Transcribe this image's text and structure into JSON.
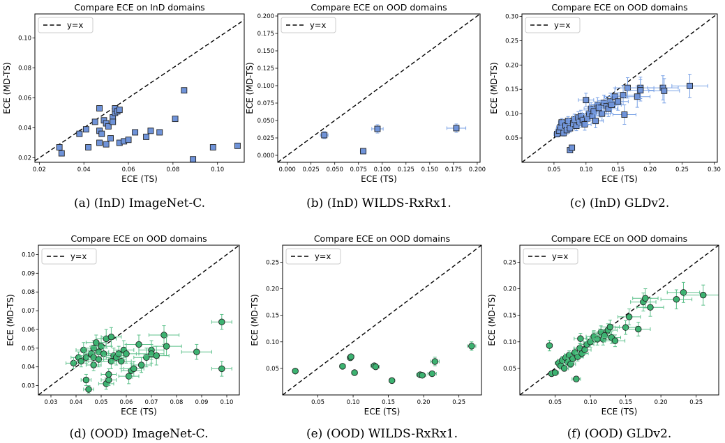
{
  "colors": {
    "blue_face": "#6f93d9",
    "blue_err": "#7aa2e6",
    "green_face": "#3cb371",
    "green_err": "#5cc08a",
    "edge": "#222222"
  },
  "chart_data": [
    {
      "type": "scatter",
      "title": "Compare ECE on InD domains",
      "xlabel": "ECE (TS)",
      "ylabel": "ECE (MD-TS)",
      "xlim": [
        0.018,
        0.112
      ],
      "ylim": [
        0.017,
        0.116
      ],
      "xticks": [
        "0.02",
        "0.04",
        "0.06",
        "0.08",
        "0.10"
      ],
      "yticks": [
        "0.02",
        "0.04",
        "0.06",
        "0.08",
        "0.10"
      ],
      "marker": "square",
      "color": "blue",
      "legend": "y=x",
      "legend_position": "top-left",
      "caption": "(a) (InD) ImageNet-C.",
      "points": [
        [
          0.029,
          0.027,
          0,
          0
        ],
        [
          0.03,
          0.023,
          0,
          0
        ],
        [
          0.038,
          0.036,
          0,
          0
        ],
        [
          0.041,
          0.039,
          0,
          0
        ],
        [
          0.042,
          0.027,
          0,
          0
        ],
        [
          0.045,
          0.044,
          0,
          0
        ],
        [
          0.047,
          0.053,
          0,
          0
        ],
        [
          0.047,
          0.038,
          0,
          0
        ],
        [
          0.047,
          0.03,
          0,
          0
        ],
        [
          0.048,
          0.036,
          0,
          0
        ],
        [
          0.049,
          0.045,
          0,
          0
        ],
        [
          0.05,
          0.043,
          0,
          0
        ],
        [
          0.05,
          0.029,
          0,
          0
        ],
        [
          0.051,
          0.041,
          0,
          0
        ],
        [
          0.052,
          0.033,
          0,
          0
        ],
        [
          0.053,
          0.047,
          0,
          0
        ],
        [
          0.053,
          0.044,
          0,
          0
        ],
        [
          0.054,
          0.05,
          0,
          0
        ],
        [
          0.054,
          0.053,
          0,
          0
        ],
        [
          0.055,
          0.051,
          0,
          0
        ],
        [
          0.056,
          0.052,
          0,
          0
        ],
        [
          0.056,
          0.03,
          0,
          0
        ],
        [
          0.058,
          0.031,
          0,
          0
        ],
        [
          0.06,
          0.032,
          0,
          0
        ],
        [
          0.063,
          0.037,
          0,
          0
        ],
        [
          0.068,
          0.034,
          0,
          0
        ],
        [
          0.07,
          0.038,
          0,
          0
        ],
        [
          0.074,
          0.037,
          0,
          0
        ],
        [
          0.081,
          0.046,
          0,
          0
        ],
        [
          0.085,
          0.065,
          0,
          0
        ],
        [
          0.089,
          0.019,
          0,
          0
        ],
        [
          0.098,
          0.027,
          0,
          0
        ],
        [
          0.109,
          0.028,
          0,
          0
        ]
      ]
    },
    {
      "type": "scatter",
      "title": "Compare ECE on OOD domains",
      "xlabel": "ECE (TS)",
      "ylabel": "ECE (MD-TS)",
      "xlim": [
        -0.01,
        0.203
      ],
      "ylim": [
        -0.01,
        0.203
      ],
      "xticks": [
        "0.000",
        "0.025",
        "0.050",
        "0.075",
        "0.100",
        "0.125",
        "0.150",
        "0.175",
        "0.200"
      ],
      "yticks": [
        "0.000",
        "0.025",
        "0.050",
        "0.075",
        "0.100",
        "0.125",
        "0.150",
        "0.175",
        "0.200"
      ],
      "marker": "square",
      "color": "blue",
      "legend": "y=x",
      "legend_position": "top-left",
      "caption": "(b) (InD) WILDS-RxRx1.",
      "points": [
        [
          0.039,
          0.029,
          0.004,
          0.005
        ],
        [
          0.08,
          0.006,
          0.003,
          0.002
        ],
        [
          0.095,
          0.038,
          0.006,
          0.006
        ],
        [
          0.178,
          0.039,
          0.01,
          0.006
        ]
      ]
    },
    {
      "type": "scatter",
      "title": "Compare ECE on OOD domains",
      "xlabel": "ECE (TS)",
      "ylabel": "ECE (MD-TS)",
      "xlim": [
        0.0,
        0.305
      ],
      "ylim": [
        0.0,
        0.305
      ],
      "xticks": [
        "0.05",
        "0.10",
        "0.15",
        "0.20",
        "0.25",
        "0.30"
      ],
      "yticks": [
        "0.05",
        "0.10",
        "0.15",
        "0.20",
        "0.25",
        "0.30"
      ],
      "marker": "square",
      "color": "blue",
      "legend": "y=x",
      "legend_position": "top-left",
      "caption": "(c) (InD) GLDv2.",
      "points": [
        [
          0.055,
          0.058,
          0.005,
          0.006
        ],
        [
          0.058,
          0.065,
          0.006,
          0.007
        ],
        [
          0.06,
          0.072,
          0.006,
          0.008
        ],
        [
          0.062,
          0.082,
          0.005,
          0.008
        ],
        [
          0.065,
          0.06,
          0.005,
          0.006
        ],
        [
          0.068,
          0.075,
          0.007,
          0.009
        ],
        [
          0.07,
          0.066,
          0.006,
          0.008
        ],
        [
          0.072,
          0.085,
          0.008,
          0.009
        ],
        [
          0.075,
          0.025,
          0.004,
          0.004
        ],
        [
          0.078,
          0.03,
          0.004,
          0.004
        ],
        [
          0.075,
          0.07,
          0.007,
          0.008
        ],
        [
          0.08,
          0.08,
          0.008,
          0.01
        ],
        [
          0.082,
          0.088,
          0.009,
          0.011
        ],
        [
          0.085,
          0.075,
          0.008,
          0.01
        ],
        [
          0.088,
          0.092,
          0.009,
          0.012
        ],
        [
          0.09,
          0.083,
          0.009,
          0.011
        ],
        [
          0.092,
          0.095,
          0.01,
          0.012
        ],
        [
          0.095,
          0.087,
          0.009,
          0.011
        ],
        [
          0.098,
          0.078,
          0.01,
          0.012
        ],
        [
          0.1,
          0.128,
          0.012,
          0.014
        ],
        [
          0.102,
          0.09,
          0.01,
          0.013
        ],
        [
          0.105,
          0.1,
          0.011,
          0.013
        ],
        [
          0.108,
          0.11,
          0.011,
          0.013
        ],
        [
          0.11,
          0.095,
          0.012,
          0.014
        ],
        [
          0.112,
          0.105,
          0.012,
          0.014
        ],
        [
          0.115,
          0.085,
          0.012,
          0.014
        ],
        [
          0.118,
          0.118,
          0.013,
          0.015
        ],
        [
          0.12,
          0.112,
          0.013,
          0.015
        ],
        [
          0.125,
          0.1,
          0.013,
          0.015
        ],
        [
          0.128,
          0.122,
          0.014,
          0.016
        ],
        [
          0.132,
          0.115,
          0.014,
          0.016
        ],
        [
          0.135,
          0.11,
          0.014,
          0.016
        ],
        [
          0.138,
          0.125,
          0.015,
          0.017
        ],
        [
          0.14,
          0.118,
          0.015,
          0.017
        ],
        [
          0.145,
          0.135,
          0.016,
          0.018
        ],
        [
          0.15,
          0.125,
          0.016,
          0.018
        ],
        [
          0.158,
          0.138,
          0.018,
          0.02
        ],
        [
          0.16,
          0.098,
          0.018,
          0.02
        ],
        [
          0.165,
          0.153,
          0.019,
          0.021
        ],
        [
          0.18,
          0.135,
          0.02,
          0.022
        ],
        [
          0.185,
          0.153,
          0.021,
          0.022
        ],
        [
          0.185,
          0.148,
          0.021,
          0.022
        ],
        [
          0.22,
          0.153,
          0.024,
          0.025
        ],
        [
          0.222,
          0.147,
          0.024,
          0.025
        ],
        [
          0.262,
          0.157,
          0.028,
          0.024
        ]
      ]
    },
    {
      "type": "scatter",
      "title": "Compare ECE on OOD domains",
      "xlabel": "ECE (TS)",
      "ylabel": "ECE (MD-TS)",
      "xlim": [
        0.025,
        0.105
      ],
      "ylim": [
        0.025,
        0.105
      ],
      "xticks": [
        "0.03",
        "0.04",
        "0.05",
        "0.06",
        "0.07",
        "0.08",
        "0.09",
        "0.10"
      ],
      "yticks": [
        "0.03",
        "0.04",
        "0.05",
        "0.06",
        "0.07",
        "0.08",
        "0.09",
        "0.10"
      ],
      "marker": "circle",
      "color": "green",
      "legend": "y=x",
      "legend_position": "top-left",
      "caption": "(d) (OOD) ImageNet-C.",
      "points": [
        [
          0.039,
          0.042,
          0.003,
          0.003
        ],
        [
          0.041,
          0.045,
          0.003,
          0.003
        ],
        [
          0.042,
          0.043,
          0.003,
          0.003
        ],
        [
          0.043,
          0.049,
          0.003,
          0.004
        ],
        [
          0.044,
          0.045,
          0.003,
          0.003
        ],
        [
          0.044,
          0.033,
          0.002,
          0.003
        ],
        [
          0.045,
          0.028,
          0.002,
          0.002
        ],
        [
          0.046,
          0.047,
          0.003,
          0.004
        ],
        [
          0.047,
          0.05,
          0.004,
          0.004
        ],
        [
          0.047,
          0.041,
          0.003,
          0.003
        ],
        [
          0.047,
          0.045,
          0.003,
          0.004
        ],
        [
          0.048,
          0.053,
          0.004,
          0.004
        ],
        [
          0.049,
          0.048,
          0.004,
          0.004
        ],
        [
          0.049,
          0.044,
          0.004,
          0.004
        ],
        [
          0.05,
          0.051,
          0.004,
          0.004
        ],
        [
          0.051,
          0.047,
          0.004,
          0.004
        ],
        [
          0.052,
          0.031,
          0.003,
          0.003
        ],
        [
          0.052,
          0.055,
          0.004,
          0.005
        ],
        [
          0.053,
          0.033,
          0.003,
          0.003
        ],
        [
          0.053,
          0.036,
          0.003,
          0.003
        ],
        [
          0.054,
          0.056,
          0.004,
          0.005
        ],
        [
          0.054,
          0.043,
          0.004,
          0.004
        ],
        [
          0.055,
          0.046,
          0.004,
          0.004
        ],
        [
          0.056,
          0.045,
          0.004,
          0.004
        ],
        [
          0.057,
          0.047,
          0.004,
          0.004
        ],
        [
          0.058,
          0.043,
          0.004,
          0.004
        ],
        [
          0.059,
          0.049,
          0.004,
          0.005
        ],
        [
          0.06,
          0.047,
          0.004,
          0.005
        ],
        [
          0.061,
          0.035,
          0.004,
          0.004
        ],
        [
          0.062,
          0.038,
          0.004,
          0.004
        ],
        [
          0.063,
          0.039,
          0.004,
          0.004
        ],
        [
          0.065,
          0.052,
          0.005,
          0.005
        ],
        [
          0.066,
          0.041,
          0.004,
          0.004
        ],
        [
          0.068,
          0.045,
          0.005,
          0.005
        ],
        [
          0.07,
          0.049,
          0.005,
          0.005
        ],
        [
          0.07,
          0.047,
          0.005,
          0.005
        ],
        [
          0.072,
          0.046,
          0.005,
          0.005
        ],
        [
          0.075,
          0.057,
          0.006,
          0.005
        ],
        [
          0.076,
          0.051,
          0.006,
          0.005
        ],
        [
          0.088,
          0.048,
          0.006,
          0.004
        ],
        [
          0.098,
          0.064,
          0.004,
          0.004
        ],
        [
          0.098,
          0.039,
          0.004,
          0.004
        ]
      ]
    },
    {
      "type": "scatter",
      "title": "Compare ECE on OOD domains",
      "xlabel": "ECE (TS)",
      "ylabel": "ECE (MD-TS)",
      "xlim": [
        0.0,
        0.282
      ],
      "ylim": [
        0.0,
        0.282
      ],
      "xticks": [
        "0.05",
        "0.10",
        "0.15",
        "0.20",
        "0.25"
      ],
      "yticks": [
        "0.05",
        "0.10",
        "0.15",
        "0.20",
        "0.25"
      ],
      "marker": "circle",
      "color": "green",
      "legend": "y=x",
      "legend_position": "top-left",
      "caption": "(e) (OOD) WILDS-RxRx1.",
      "points": [
        [
          0.018,
          0.045,
          0.002,
          0.003
        ],
        [
          0.085,
          0.054,
          0.004,
          0.004
        ],
        [
          0.096,
          0.07,
          0.004,
          0.004
        ],
        [
          0.097,
          0.072,
          0.004,
          0.004
        ],
        [
          0.102,
          0.042,
          0.004,
          0.003
        ],
        [
          0.13,
          0.055,
          0.005,
          0.004
        ],
        [
          0.132,
          0.053,
          0.005,
          0.004
        ],
        [
          0.155,
          0.027,
          0.004,
          0.003
        ],
        [
          0.195,
          0.038,
          0.005,
          0.003
        ],
        [
          0.198,
          0.037,
          0.005,
          0.003
        ],
        [
          0.212,
          0.04,
          0.006,
          0.004
        ],
        [
          0.216,
          0.063,
          0.006,
          0.008
        ],
        [
          0.268,
          0.092,
          0.006,
          0.008
        ]
      ]
    },
    {
      "type": "scatter",
      "title": "Compare ECE on OOD domains",
      "xlabel": "ECE (TS)",
      "ylabel": "ECE (MD-TS)",
      "xlim": [
        0.0,
        0.282
      ],
      "ylim": [
        0.0,
        0.282
      ],
      "xticks": [
        "0.05",
        "0.10",
        "0.15",
        "0.20",
        "0.25"
      ],
      "yticks": [
        "0.05",
        "0.10",
        "0.15",
        "0.20",
        "0.25"
      ],
      "marker": "circle",
      "color": "green",
      "legend": "y=x",
      "legend_position": "top-left",
      "caption": "(f) (OOD) GLDv2.",
      "points": [
        [
          0.042,
          0.093,
          0.004,
          0.01
        ],
        [
          0.045,
          0.04,
          0.004,
          0.004
        ],
        [
          0.05,
          0.042,
          0.005,
          0.004
        ],
        [
          0.055,
          0.06,
          0.005,
          0.006
        ],
        [
          0.058,
          0.055,
          0.005,
          0.006
        ],
        [
          0.06,
          0.065,
          0.006,
          0.007
        ],
        [
          0.063,
          0.05,
          0.006,
          0.005
        ],
        [
          0.065,
          0.07,
          0.006,
          0.007
        ],
        [
          0.068,
          0.062,
          0.006,
          0.007
        ],
        [
          0.07,
          0.075,
          0.007,
          0.008
        ],
        [
          0.072,
          0.058,
          0.007,
          0.006
        ],
        [
          0.075,
          0.068,
          0.007,
          0.007
        ],
        [
          0.078,
          0.08,
          0.008,
          0.008
        ],
        [
          0.08,
          0.03,
          0.006,
          0.004
        ],
        [
          0.082,
          0.072,
          0.008,
          0.008
        ],
        [
          0.085,
          0.088,
          0.008,
          0.009
        ],
        [
          0.086,
          0.106,
          0.009,
          0.01
        ],
        [
          0.088,
          0.078,
          0.009,
          0.008
        ],
        [
          0.092,
          0.085,
          0.009,
          0.009
        ],
        [
          0.095,
          0.095,
          0.01,
          0.01
        ],
        [
          0.1,
          0.1,
          0.01,
          0.01
        ],
        [
          0.105,
          0.11,
          0.011,
          0.011
        ],
        [
          0.11,
          0.105,
          0.011,
          0.011
        ],
        [
          0.115,
          0.118,
          0.012,
          0.012
        ],
        [
          0.118,
          0.105,
          0.012,
          0.011
        ],
        [
          0.12,
          0.112,
          0.012,
          0.012
        ],
        [
          0.125,
          0.122,
          0.013,
          0.012
        ],
        [
          0.128,
          0.128,
          0.013,
          0.013
        ],
        [
          0.13,
          0.108,
          0.013,
          0.011
        ],
        [
          0.135,
          0.102,
          0.014,
          0.011
        ],
        [
          0.15,
          0.127,
          0.015,
          0.013
        ],
        [
          0.155,
          0.147,
          0.016,
          0.015
        ],
        [
          0.168,
          0.124,
          0.017,
          0.013
        ],
        [
          0.175,
          0.175,
          0.018,
          0.017
        ],
        [
          0.178,
          0.182,
          0.018,
          0.018
        ],
        [
          0.185,
          0.165,
          0.019,
          0.017
        ],
        [
          0.222,
          0.18,
          0.022,
          0.018
        ],
        [
          0.232,
          0.193,
          0.023,
          0.019
        ],
        [
          0.26,
          0.188,
          0.026,
          0.019
        ]
      ]
    }
  ]
}
